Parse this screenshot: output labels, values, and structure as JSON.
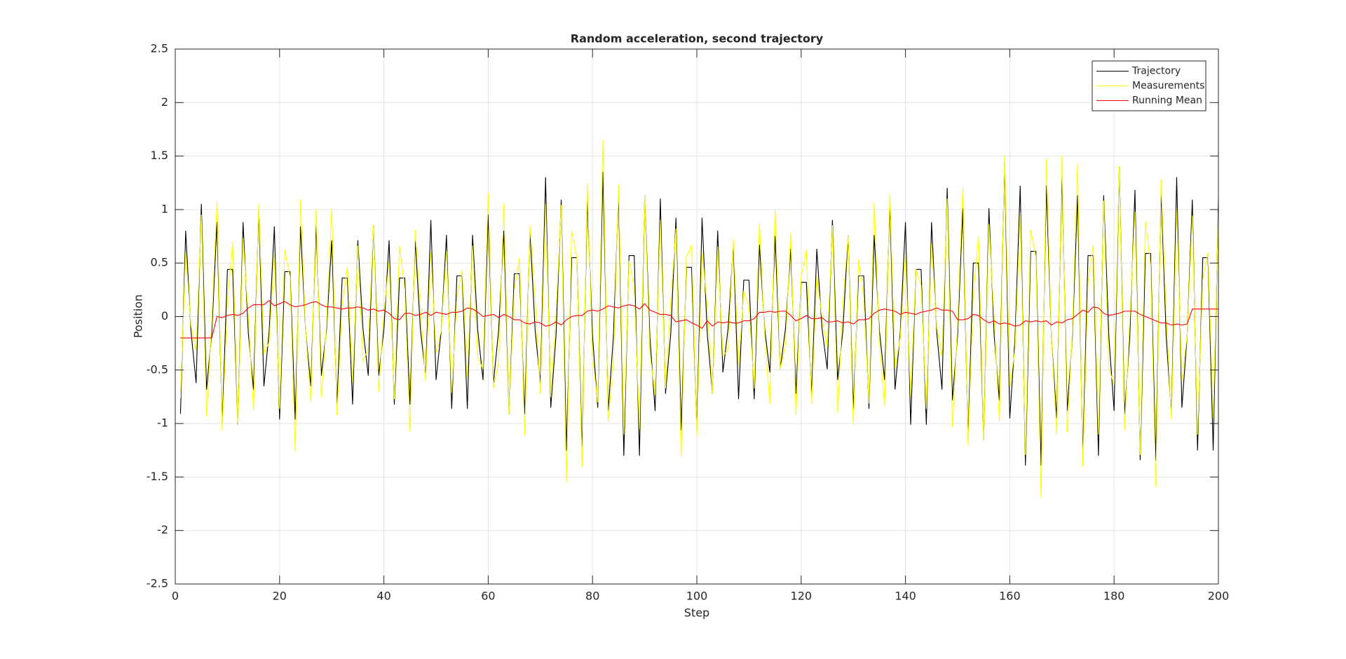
{
  "chart_data": {
    "type": "line",
    "title": "Random acceleration, second trajectory",
    "xlabel": "Step",
    "ylabel": "Position",
    "x": [
      1,
      2,
      3,
      4,
      5,
      6,
      7,
      8,
      9,
      10,
      11,
      12,
      13,
      14,
      15,
      16,
      17,
      18,
      19,
      20,
      21,
      22,
      23,
      24,
      25,
      26,
      27,
      28,
      29,
      30,
      31,
      32,
      33,
      34,
      35,
      36,
      37,
      38,
      39,
      40,
      41,
      42,
      43,
      44,
      45,
      46,
      47,
      48,
      49,
      50,
      51,
      52,
      53,
      54,
      55,
      56,
      57,
      58,
      59,
      60,
      61,
      62,
      63,
      64,
      65,
      66,
      67,
      68,
      69,
      70,
      71,
      72,
      73,
      74,
      75,
      76,
      77,
      78,
      79,
      80,
      81,
      82,
      83,
      84,
      85,
      86,
      87,
      88,
      89,
      90,
      91,
      92,
      93,
      94,
      95,
      96,
      97,
      98,
      99,
      100,
      101,
      102,
      103,
      104,
      105,
      106,
      107,
      108,
      109,
      110,
      111,
      112,
      113,
      114,
      115,
      116,
      117,
      118,
      119,
      120,
      121,
      122,
      123,
      124,
      125,
      126,
      127,
      128,
      129,
      130,
      131,
      132,
      133,
      134,
      135,
      136,
      137,
      138,
      139,
      140,
      141,
      142,
      143,
      144,
      145,
      146,
      147,
      148,
      149,
      150,
      151,
      152,
      153,
      154,
      155,
      156,
      157,
      158,
      159,
      160,
      161,
      162,
      163,
      164,
      165,
      166,
      167,
      168,
      169,
      170,
      171,
      172,
      173,
      174,
      175,
      176,
      177,
      178,
      179,
      180,
      181,
      182,
      183,
      184,
      185,
      186,
      187,
      188,
      189,
      190,
      191,
      192,
      193,
      194,
      195,
      196,
      197,
      198,
      199,
      200
    ],
    "series": [
      {
        "name": "Trajectory",
        "color": "#000000",
        "values": [
          -0.91,
          0.8,
          -0.13,
          -0.62,
          1.05,
          -0.68,
          -0.15,
          0.88,
          -1.01,
          0.44,
          0.44,
          -1.01,
          0.88,
          -0.15,
          -0.68,
          1,
          -0.65,
          -0.14,
          0.84,
          -0.96,
          0.42,
          0.42,
          -0.96,
          0.84,
          -0.14,
          -0.65,
          0.85,
          -0.55,
          -0.12,
          0.71,
          -0.82,
          0.36,
          0.36,
          -0.82,
          0.71,
          -0.12,
          -0.55,
          0.85,
          -0.55,
          -0.12,
          0.71,
          -0.82,
          0.36,
          0.36,
          -0.82,
          0.71,
          -0.12,
          -0.55,
          0.9,
          -0.59,
          -0.13,
          0.76,
          -0.86,
          0.38,
          0.38,
          -0.86,
          0.76,
          -0.13,
          -0.59,
          0.95,
          -0.62,
          -0.13,
          0.8,
          -0.91,
          0.4,
          0.4,
          -0.91,
          0.8,
          -0.13,
          -0.62,
          1.3,
          -0.85,
          -0.18,
          1.09,
          -1.25,
          0.55,
          0.55,
          -1.25,
          1.09,
          -0.18,
          -0.85,
          1.35,
          -0.88,
          -0.19,
          1.13,
          -1.3,
          0.57,
          0.57,
          -1.3,
          1.13,
          -0.19,
          -0.88,
          1.1,
          -0.72,
          -0.16,
          0.92,
          -1.06,
          0.46,
          0.46,
          -1.06,
          0.92,
          -0.16,
          -0.72,
          0.8,
          -0.52,
          -0.11,
          0.67,
          -0.77,
          0.34,
          0.34,
          -0.77,
          0.67,
          -0.11,
          -0.52,
          0.75,
          -0.49,
          -0.11,
          0.63,
          -0.72,
          0.32,
          0.32,
          -0.72,
          0.63,
          -0.11,
          -0.49,
          0.9,
          -0.59,
          -0.13,
          0.76,
          -0.86,
          0.38,
          0.38,
          -0.86,
          0.76,
          -0.13,
          -0.59,
          1.05,
          -0.68,
          -0.15,
          0.88,
          -1.01,
          0.44,
          0.44,
          -1.01,
          0.88,
          -0.15,
          -0.68,
          1.2,
          -0.78,
          -0.17,
          1.01,
          -1.15,
          0.5,
          0.5,
          -1.15,
          1.01,
          -0.17,
          -0.78,
          1.45,
          -0.95,
          -0.21,
          1.22,
          -1.39,
          0.61,
          0.61,
          -1.39,
          1.22,
          -0.21,
          -0.95,
          1.35,
          -0.88,
          -0.19,
          1.13,
          -1.3,
          0.57,
          0.57,
          -1.3,
          1.13,
          -0.19,
          -0.88,
          1.4,
          -0.91,
          -0.2,
          1.18,
          -1.34,
          0.59,
          0.59,
          -1.34,
          1.18,
          -0.2,
          -0.91,
          1.3,
          -0.85,
          -0.18,
          1.09,
          -1.25,
          0.55,
          0.55,
          -1.25,
          1.09
        ]
      },
      {
        "name": "Measurements",
        "color": "#ffff00",
        "values": [
          -0.76,
          0.6,
          -0.08,
          -0.32,
          0.95,
          -0.93,
          -0.05,
          1.08,
          -1.06,
          0.14,
          0.69,
          -1.01,
          0.73,
          0,
          -0.88,
          1.05,
          -0.35,
          -0.24,
          0.59,
          -0.86,
          0.62,
          0.37,
          -1.26,
          1.09,
          -0.14,
          -0.8,
          1,
          -0.75,
          -0.07,
          1.01,
          -0.92,
          0.11,
          0.46,
          -0.62,
          0.66,
          -0.42,
          -0.3,
          0.85,
          -0.7,
          0.03,
          0.51,
          -0.77,
          0.66,
          0.26,
          -1.07,
          0.81,
          0.08,
          -0.6,
          0.6,
          -0.34,
          -0.13,
          0.61,
          -0.71,
          0.18,
          0.43,
          -0.56,
          0.66,
          -0.38,
          -0.49,
          1.15,
          -0.67,
          -0.43,
          1.05,
          -0.91,
          0.25,
          0.55,
          -1.11,
          0.85,
          0.17,
          -0.72,
          1.05,
          -0.75,
          0.02,
          1.04,
          -1.55,
          0.8,
          0.55,
          -1.4,
          1.24,
          -0.38,
          -0.8,
          1.65,
          -0.98,
          -0.44,
          1.23,
          -1.1,
          0.52,
          0.27,
          -1.05,
          1.13,
          -0.34,
          -0.73,
          0.9,
          -0.67,
          0.14,
          0.82,
          -1.31,
          0.56,
          0.66,
          -1.11,
          0.62,
          0.09,
          -0.72,
          0.65,
          -0.37,
          -0.31,
          0.72,
          -0.47,
          0.24,
          0.09,
          -0.67,
          0.87,
          -0.16,
          -0.82,
          1,
          -0.49,
          -0.26,
          0.78,
          -0.92,
          0.37,
          0.62,
          -0.82,
          0.38,
          -0.01,
          -0.29,
          0.85,
          -0.89,
          0.12,
          0.76,
          -1.01,
          0.53,
          0.18,
          -0.81,
          1.06,
          -0.23,
          -0.84,
          1.15,
          -0.48,
          -0.2,
          0.58,
          -0.76,
          0.44,
          0.29,
          -0.86,
          0.68,
          -0.1,
          -0.38,
          1.1,
          -1.03,
          -0.07,
          1.21,
          -1.2,
          0.2,
          0.75,
          -1.15,
          0.86,
          -0.02,
          -0.98,
          1.5,
          -0.65,
          -0.31,
          0.97,
          -1.29,
          0.81,
          0.56,
          -1.69,
          1.47,
          -0.21,
          -1.1,
          1.5,
          -1.08,
          -0.14,
          1.43,
          -1.4,
          0.32,
          0.67,
          -1.1,
          1.08,
          -0.49,
          -0.63,
          1.4,
          -1.06,
          -0.05,
          0.98,
          -1.29,
          0.89,
          0.49,
          -1.59,
          1.28,
          0,
          -0.96,
          1,
          -0.6,
          -0.18,
          0.94,
          -1.1,
          0.35,
          0.6,
          -0.95,
          0.99
        ]
      },
      {
        "name": "Running Mean",
        "color": "#ff0000",
        "values": [
          -0.2,
          -0.2,
          -0.2,
          -0.2,
          -0.2,
          -0.2,
          -0.2,
          0,
          -0.01,
          0.01,
          0.02,
          0.01,
          0.03,
          0.08,
          0.11,
          0.11,
          0.11,
          0.15,
          0.1,
          0.12,
          0.14,
          0.11,
          0.09,
          0.1,
          0.11,
          0.13,
          0.14,
          0.11,
          0.09,
          0.09,
          0.08,
          0.07,
          0.08,
          0.08,
          0.09,
          0.08,
          0.06,
          0.07,
          0.05,
          0.06,
          0.03,
          -0.02,
          -0.03,
          0.03,
          0.03,
          0.01,
          0.02,
          0.04,
          0.01,
          0.04,
          0.03,
          0.02,
          0.04,
          0.04,
          0.05,
          0.08,
          0.07,
          0.04,
          0,
          0.01,
          0.02,
          -0.01,
          0.02,
          0,
          -0.03,
          -0.03,
          -0.06,
          -0.07,
          -0.05,
          -0.06,
          -0.09,
          -0.08,
          -0.05,
          -0.08,
          -0.03,
          0,
          0.01,
          0.01,
          0.05,
          0.06,
          0.05,
          0.07,
          0.1,
          0.09,
          0.08,
          0.1,
          0.11,
          0.1,
          0.07,
          0.12,
          0.06,
          0.04,
          0.02,
          0.02,
          0.01,
          -0.05,
          -0.04,
          -0.03,
          -0.06,
          -0.08,
          -0.11,
          -0.04,
          -0.09,
          -0.05,
          -0.06,
          -0.05,
          -0.06,
          -0.06,
          -0.04,
          -0.04,
          -0.02,
          0.04,
          0.04,
          0.05,
          0.04,
          0.05,
          0.05,
          0.01,
          -0.04,
          -0.02,
          0.01,
          -0.02,
          -0.02,
          -0.01,
          -0.05,
          -0.05,
          -0.04,
          -0.06,
          -0.05,
          -0.07,
          -0.03,
          -0.03,
          -0.02,
          0.03,
          0.06,
          0.07,
          0.06,
          0.05,
          0.02,
          0.04,
          0.03,
          0.02,
          0.04,
          0.05,
          0.06,
          0.08,
          0.06,
          0.06,
          0.05,
          -0.03,
          -0.03,
          -0.02,
          0.02,
          0.01,
          -0.03,
          -0.06,
          -0.04,
          -0.07,
          -0.06,
          -0.07,
          -0.09,
          -0.08,
          -0.04,
          -0.05,
          -0.04,
          -0.05,
          -0.04,
          -0.08,
          -0.05,
          -0.06,
          -0.03,
          -0.02,
          0.02,
          0.06,
          0.04,
          0.09,
          0.08,
          0.03,
          0.01,
          0.02,
          0.03,
          0.05,
          0.05,
          0.05,
          0.02,
          0,
          -0.02,
          -0.04,
          -0.06,
          -0.06,
          -0.08,
          -0.07,
          -0.08,
          -0.07,
          0.07,
          0.07,
          0.07,
          0.07,
          0.07,
          0.07
        ]
      }
    ],
    "xlim": [
      0,
      200
    ],
    "ylim": [
      -2.5,
      2.5
    ],
    "xticks": [
      0,
      20,
      40,
      60,
      80,
      100,
      120,
      140,
      160,
      180,
      200
    ],
    "yticks": [
      -2.5,
      -2,
      -1.5,
      -1,
      -0.5,
      0,
      0.5,
      1,
      1.5,
      2,
      2.5
    ],
    "grid": true,
    "legend": "northeast"
  }
}
